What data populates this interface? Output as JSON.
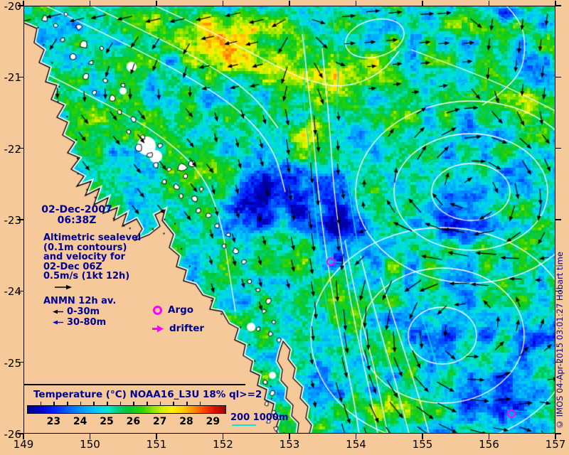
{
  "figure": {
    "colors": {
      "land": "#f6c99a",
      "text_navy": "#000090",
      "marker_magenta": "#ff00ff",
      "bathy_cyan": "#00e6dc",
      "contour_white": "#ffffff",
      "arrow_black": "#000000"
    }
  },
  "map": {
    "lon_range": [
      149,
      157
    ],
    "lat_range": [
      -26,
      -20
    ],
    "x_tick_labels": [
      "149",
      "150",
      "151",
      "152",
      "153",
      "154",
      "155",
      "156",
      "157"
    ],
    "y_tick_labels": [
      "-20",
      "-21",
      "-22",
      "-23",
      "-24",
      "-25",
      "-26"
    ]
  },
  "annotations": {
    "date_line1": "02-Dec-2007",
    "date_line2": "06:38Z",
    "altimetry_lines": [
      "Altimetric sealevel",
      "(0.1m contours)",
      "and velocity for",
      "02-Dec 06Z",
      "0.5m/s (1kt 12h)"
    ]
  },
  "legend": {
    "anmn_title": "ANMN 12h av.",
    "anmn_items": [
      {
        "label": "0-30m",
        "color": "#000000"
      },
      {
        "label": "30-80m",
        "color": "#0000ee"
      }
    ],
    "markers": [
      {
        "label": "Argo",
        "symbol": "magenta-circle"
      },
      {
        "label": "drifter",
        "symbol": "magenta-arrow"
      }
    ]
  },
  "colorbar": {
    "title": "Temperature (°C) NOAA16_L3U 18% ql>=2",
    "tick_labels": [
      "23",
      "24",
      "25",
      "26",
      "27",
      "28",
      "29"
    ],
    "value_min": 22,
    "value_span": 7.5,
    "stops": [
      {
        "p": 0.0,
        "c": "#000082"
      },
      {
        "p": 0.07,
        "c": "#0000d2"
      },
      {
        "p": 0.14,
        "c": "#0028ff"
      },
      {
        "p": 0.21,
        "c": "#0064ff"
      },
      {
        "p": 0.28,
        "c": "#00a0ff"
      },
      {
        "p": 0.36,
        "c": "#00d2f0"
      },
      {
        "p": 0.41,
        "c": "#00e6c8"
      },
      {
        "p": 0.46,
        "c": "#00cd78"
      },
      {
        "p": 0.51,
        "c": "#00c832"
      },
      {
        "p": 0.58,
        "c": "#32d200"
      },
      {
        "p": 0.64,
        "c": "#96e600"
      },
      {
        "p": 0.68,
        "c": "#d2f000"
      },
      {
        "p": 0.73,
        "c": "#fff000"
      },
      {
        "p": 0.79,
        "c": "#ffc800"
      },
      {
        "p": 0.84,
        "c": "#ff8c00"
      },
      {
        "p": 0.89,
        "c": "#ff4600"
      },
      {
        "p": 0.94,
        "c": "#e11400"
      },
      {
        "p": 1.0,
        "c": "#a00000"
      }
    ],
    "bathy_label": "200 1000m"
  },
  "attribution": {
    "text": "© IMOS 04-Apr-2015 03:01:27 Hobart time"
  },
  "map_data": {
    "type": "geospatial-sst-field",
    "lon_range": [
      149,
      157
    ],
    "lat_range": [
      -26,
      -20
    ],
    "sst_scale_c": [
      23,
      29
    ],
    "overlays": [
      "altimetric sealevel contours (0.1m)",
      "velocity vectors (0.5m/s scale)",
      "bathymetry contours 200m and 1000m"
    ],
    "argo_floats_lonlat": [
      [
        153.62,
        -23.59
      ],
      [
        156.34,
        -25.72
      ]
    ],
    "eddy_centers_lonlat": [
      [
        155.73,
        -22.61
      ],
      [
        155.3,
        -24.63
      ]
    ]
  }
}
